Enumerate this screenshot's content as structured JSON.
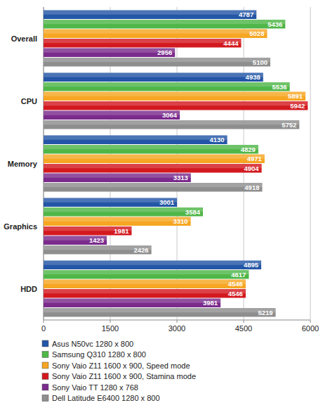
{
  "chart_data": {
    "type": "bar",
    "orientation": "horizontal",
    "categories": [
      "Overall",
      "CPU",
      "Memory",
      "Graphics",
      "HDD"
    ],
    "series": [
      {
        "name": "Asus N50vc 1280 x 800",
        "color": "#2356a6",
        "values": [
          4787,
          4938,
          4130,
          3001,
          4895
        ]
      },
      {
        "name": "Samsung Q310 1280 x 800",
        "color": "#4fb648",
        "values": [
          5436,
          5536,
          4829,
          3584,
          4617
        ]
      },
      {
        "name": "Sony Vaio Z11 1600 x 900, Speed mode",
        "color": "#f6a623",
        "values": [
          5028,
          5891,
          4971,
          3310,
          4546
        ]
      },
      {
        "name": "Sony Vaio Z11 1600 x 900, Stamina mode",
        "color": "#d3191f",
        "values": [
          4444,
          5942,
          4904,
          1981,
          4546
        ]
      },
      {
        "name": "Sony Vaio TT 1280 x 768",
        "color": "#7a2b8c",
        "values": [
          2956,
          3064,
          3313,
          1423,
          3981
        ]
      },
      {
        "name": "Dell Latitude E6400 1280 x 800",
        "color": "#8e8e8e",
        "values": [
          5100,
          5752,
          4918,
          2426,
          5219
        ]
      }
    ],
    "xlim": [
      0,
      6000
    ],
    "xticks": [
      0,
      1500,
      3000,
      4500,
      6000
    ],
    "grid": true,
    "data_labels": true,
    "legend": "bottom"
  }
}
